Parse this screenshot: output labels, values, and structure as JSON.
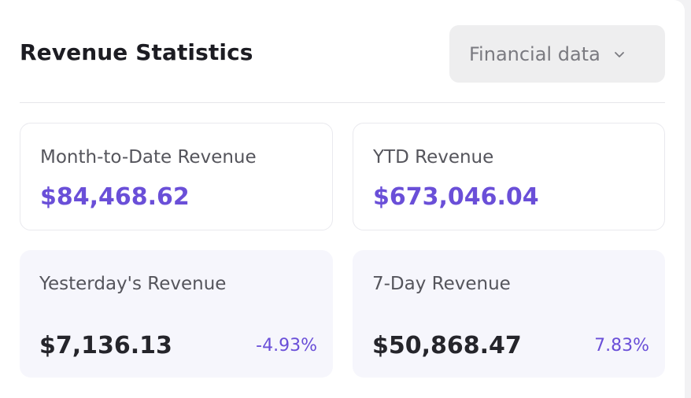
{
  "header": {
    "title": "Revenue Statistics",
    "dropdown": {
      "selected": "Financial data",
      "icon": "chevron-down-icon"
    }
  },
  "stats": {
    "month_to_date": {
      "label": "Month-to-Date Revenue",
      "value": "$84,468.62"
    },
    "ytd": {
      "label": "YTD Revenue",
      "value": "$673,046.04"
    },
    "yesterday": {
      "label": "Yesterday's Revenue",
      "value": "$7,136.13",
      "change": "-4.93%"
    },
    "seven_day": {
      "label": "7-Day Revenue",
      "value": "$50,868.47",
      "change": "7.83%"
    }
  },
  "colors": {
    "accent": "#6a4fd8",
    "text_dark": "#25252b",
    "tile_fill": "#f6f6fc"
  }
}
